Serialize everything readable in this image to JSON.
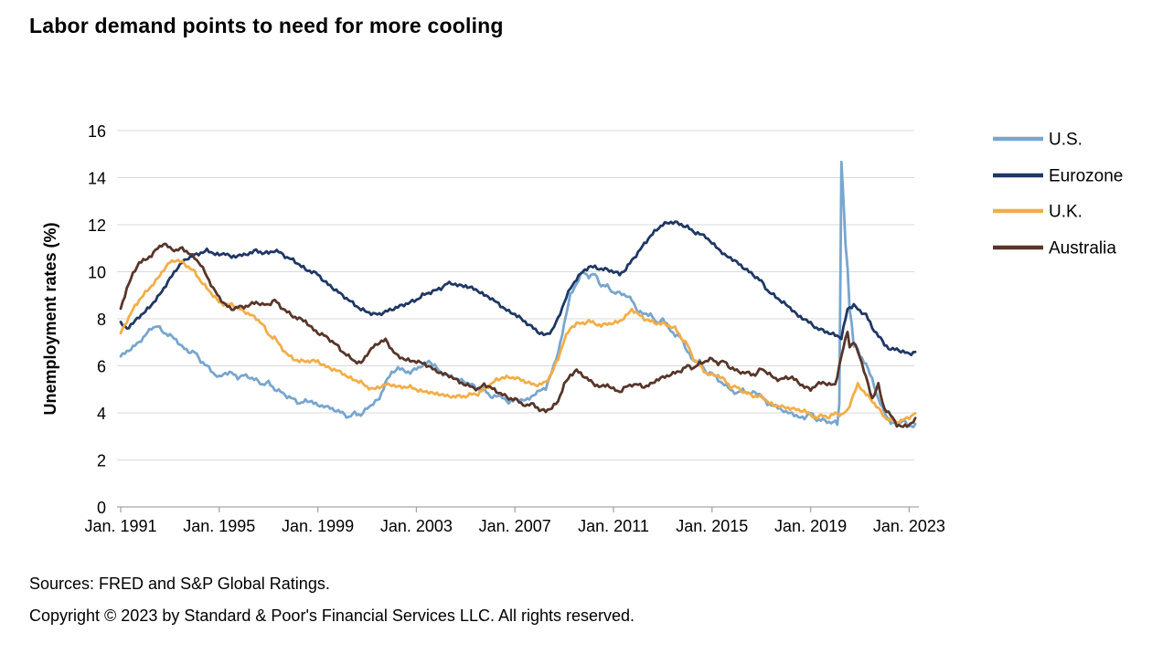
{
  "title": "Labor demand points to need for more cooling",
  "footer": {
    "sources": "Sources: FRED and S&P Global Ratings.",
    "copyright": "Copyright © 2023 by Standard & Poor's Financial Services LLC. All rights reserved."
  },
  "chart_data": {
    "type": "line",
    "title": "Labor demand points to need for more cooling",
    "ylabel": "Unemployment rates (%)",
    "xlabel": "",
    "ylim": [
      0,
      16
    ],
    "y_tick_step": 2,
    "xlim": [
      1991.0,
      2023.3
    ],
    "x_tick_years": [
      1991,
      1995,
      1999,
      2003,
      2007,
      2011,
      2015,
      2019,
      2023
    ],
    "x_tick_labels": [
      "Jan. 1991",
      "Jan. 1995",
      "Jan. 1999",
      "Jan. 2003",
      "Jan. 2007",
      "Jan. 2011",
      "Jan. 2015",
      "Jan. 2019",
      "Jan. 2023"
    ],
    "grid": true,
    "legend_position": "right",
    "grid_color": "#d9d9d9",
    "axis_color": "#a6a6a6",
    "series": [
      {
        "name": "U.S.",
        "color": "#78a6ce",
        "x_start": 1991.0,
        "x_step": 0.25,
        "y": [
          6.4,
          6.6,
          6.8,
          7.0,
          7.3,
          7.6,
          7.7,
          7.4,
          7.3,
          7.1,
          6.8,
          6.6,
          6.6,
          6.2,
          6.0,
          5.7,
          5.5,
          5.7,
          5.7,
          5.5,
          5.6,
          5.5,
          5.4,
          5.2,
          5.3,
          5.0,
          4.9,
          4.7,
          4.6,
          4.4,
          4.5,
          4.5,
          4.3,
          4.3,
          4.2,
          4.1,
          4.0,
          3.8,
          4.0,
          3.9,
          4.2,
          4.4,
          4.6,
          5.3,
          5.7,
          5.9,
          5.8,
          5.7,
          5.9,
          6.0,
          6.2,
          6.0,
          5.7,
          5.6,
          5.5,
          5.4,
          5.3,
          5.2,
          5.0,
          5.0,
          4.7,
          4.7,
          4.7,
          4.4,
          4.6,
          4.5,
          4.6,
          4.7,
          5.0,
          5.0,
          5.8,
          6.5,
          7.8,
          9.0,
          9.5,
          10.0,
          9.8,
          9.9,
          9.4,
          9.4,
          9.1,
          9.1,
          9.0,
          8.8,
          8.3,
          8.2,
          8.2,
          7.8,
          8.0,
          7.6,
          7.3,
          7.2,
          6.6,
          6.2,
          6.2,
          5.7,
          5.7,
          5.4,
          5.2,
          5.0,
          4.8,
          5.0,
          4.8,
          4.9,
          4.7,
          4.4,
          4.3,
          4.2,
          4.0,
          4.0,
          3.8,
          3.8,
          4.0,
          3.7,
          3.7,
          3.6,
          3.6,
          14.7,
          10.2,
          6.9,
          6.4,
          6.1,
          5.4,
          4.6,
          4.0,
          3.6,
          3.5,
          3.7,
          3.4,
          3.5
        ],
        "extra_points": [
          [
            2020.08,
            3.5
          ],
          [
            2020.17,
            4.4
          ],
          [
            2020.33,
            13.2
          ],
          [
            2020.42,
            11.0
          ],
          [
            2020.58,
            8.4
          ],
          [
            2020.67,
            7.8
          ],
          [
            2020.92,
            6.7
          ]
        ]
      },
      {
        "name": "Eurozone",
        "color": "#1f3864",
        "x_start": 1991.0,
        "x_step": 0.25,
        "y": [
          7.8,
          7.6,
          7.8,
          8.1,
          8.3,
          8.6,
          8.9,
          9.3,
          9.7,
          10.1,
          10.4,
          10.6,
          10.7,
          10.8,
          10.9,
          10.8,
          10.7,
          10.8,
          10.6,
          10.7,
          10.7,
          10.8,
          10.9,
          10.8,
          10.8,
          10.9,
          10.8,
          10.6,
          10.5,
          10.3,
          10.1,
          10.0,
          9.9,
          9.6,
          9.4,
          9.2,
          9.0,
          8.8,
          8.6,
          8.4,
          8.3,
          8.2,
          8.2,
          8.3,
          8.4,
          8.5,
          8.6,
          8.7,
          8.8,
          9.0,
          9.1,
          9.2,
          9.3,
          9.5,
          9.5,
          9.4,
          9.4,
          9.3,
          9.2,
          9.0,
          8.9,
          8.7,
          8.5,
          8.3,
          8.2,
          8.0,
          7.8,
          7.6,
          7.4,
          7.3,
          7.5,
          8.0,
          8.7,
          9.3,
          9.7,
          10.0,
          10.2,
          10.2,
          10.1,
          10.1,
          10.0,
          9.9,
          10.1,
          10.5,
          10.8,
          11.2,
          11.5,
          11.8,
          12.0,
          12.1,
          12.1,
          12.0,
          11.9,
          11.7,
          11.6,
          11.5,
          11.2,
          11.0,
          10.7,
          10.6,
          10.4,
          10.2,
          10.0,
          9.8,
          9.6,
          9.2,
          9.0,
          8.8,
          8.6,
          8.4,
          8.1,
          8.0,
          7.8,
          7.6,
          7.5,
          7.4,
          7.3,
          7.2,
          8.4,
          8.6,
          8.3,
          8.2,
          7.6,
          7.3,
          6.9,
          6.7,
          6.7,
          6.6,
          6.5,
          6.6
        ],
        "extra_points": []
      },
      {
        "name": "U.K.",
        "color": "#f2ae49",
        "x_start": 1991.0,
        "x_step": 0.25,
        "y": [
          7.4,
          7.9,
          8.4,
          8.8,
          9.1,
          9.4,
          9.7,
          10.1,
          10.4,
          10.5,
          10.4,
          10.2,
          10.0,
          9.6,
          9.3,
          9.0,
          8.7,
          8.6,
          8.6,
          8.5,
          8.3,
          8.2,
          8.0,
          7.8,
          7.3,
          7.2,
          6.8,
          6.5,
          6.3,
          6.2,
          6.2,
          6.2,
          6.2,
          6.0,
          5.9,
          5.8,
          5.7,
          5.5,
          5.4,
          5.3,
          5.1,
          5.0,
          5.1,
          5.2,
          5.2,
          5.1,
          5.1,
          5.1,
          5.0,
          4.9,
          4.9,
          4.8,
          4.8,
          4.7,
          4.7,
          4.7,
          4.7,
          4.8,
          4.8,
          5.0,
          5.2,
          5.4,
          5.5,
          5.5,
          5.5,
          5.4,
          5.3,
          5.2,
          5.2,
          5.3,
          5.7,
          6.3,
          7.1,
          7.6,
          7.8,
          7.8,
          7.9,
          7.8,
          7.7,
          7.8,
          7.8,
          7.9,
          8.1,
          8.4,
          8.2,
          8.0,
          7.9,
          7.8,
          7.8,
          7.7,
          7.6,
          7.2,
          6.9,
          6.3,
          6.0,
          5.7,
          5.6,
          5.6,
          5.4,
          5.1,
          5.1,
          4.9,
          4.8,
          4.7,
          4.7,
          4.5,
          4.3,
          4.3,
          4.2,
          4.2,
          4.1,
          4.1,
          3.9,
          3.8,
          3.9,
          3.8,
          4.0,
          3.9,
          4.1,
          4.8,
          5.1,
          4.8,
          4.5,
          4.2,
          3.8,
          3.7,
          3.6,
          3.7,
          3.8,
          4.0
        ],
        "extra_points": [
          [
            2020.92,
            5.2
          ]
        ]
      },
      {
        "name": "Australia",
        "color": "#58362a",
        "x_start": 1991.0,
        "x_step": 0.25,
        "y": [
          8.4,
          9.3,
          9.9,
          10.4,
          10.5,
          10.7,
          11.0,
          11.2,
          11.0,
          10.9,
          11.0,
          10.8,
          10.6,
          10.3,
          9.8,
          9.3,
          8.9,
          8.6,
          8.4,
          8.5,
          8.5,
          8.6,
          8.7,
          8.6,
          8.6,
          8.8,
          8.5,
          8.3,
          8.1,
          8.0,
          7.9,
          7.6,
          7.4,
          7.3,
          7.1,
          6.9,
          6.6,
          6.4,
          6.2,
          6.1,
          6.5,
          6.8,
          7.0,
          7.1,
          6.7,
          6.4,
          6.3,
          6.2,
          6.2,
          6.1,
          6.0,
          5.8,
          5.7,
          5.6,
          5.5,
          5.3,
          5.2,
          5.1,
          5.0,
          5.2,
          5.1,
          4.9,
          4.8,
          4.6,
          4.6,
          4.4,
          4.3,
          4.4,
          4.1,
          4.1,
          4.2,
          4.5,
          5.2,
          5.6,
          5.8,
          5.6,
          5.4,
          5.2,
          5.1,
          5.2,
          5.0,
          4.9,
          5.1,
          5.2,
          5.2,
          5.1,
          5.2,
          5.4,
          5.5,
          5.6,
          5.7,
          5.8,
          6.0,
          5.9,
          6.1,
          6.2,
          6.3,
          6.1,
          6.2,
          5.9,
          5.8,
          5.7,
          5.7,
          5.6,
          5.9,
          5.7,
          5.5,
          5.4,
          5.5,
          5.5,
          5.3,
          5.1,
          5.0,
          5.2,
          5.3,
          5.2,
          5.2,
          6.4,
          7.5,
          7.0,
          6.4,
          5.5,
          4.6,
          5.2,
          4.2,
          3.9,
          3.5,
          3.4,
          3.5,
          3.7
        ],
        "extra_points": [
          [
            2020.58,
            6.8
          ],
          [
            2020.92,
            6.6
          ],
          [
            2021.92,
            4.4
          ]
        ]
      }
    ]
  }
}
